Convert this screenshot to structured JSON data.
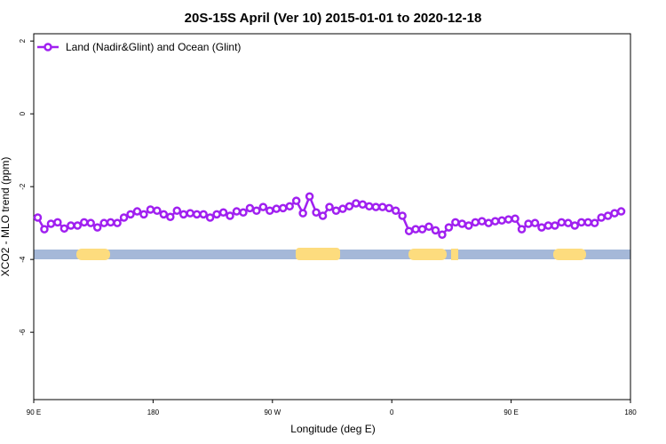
{
  "chart_data": {
    "type": "line",
    "title": "20S-15S April (Ver 10)   2015-01-01 to 2020-12-18",
    "x_label": "Longitude (deg E)",
    "y_label": "XCO2 - MLO trend (ppm)",
    "x": [
      93,
      98,
      103,
      108,
      113,
      118,
      123,
      128,
      133,
      138,
      143,
      148,
      153,
      158,
      163,
      168,
      173,
      178,
      183,
      188,
      193,
      198,
      203,
      208,
      213,
      218,
      223,
      228,
      233,
      238,
      243,
      248,
      253,
      258,
      263,
      268,
      273,
      278,
      283,
      288,
      293,
      298,
      303,
      308,
      313,
      318,
      323,
      328,
      333,
      338,
      343,
      348,
      353,
      358,
      363,
      368,
      373,
      378,
      383,
      388,
      393,
      398,
      403,
      408,
      413,
      418,
      423,
      428,
      433,
      438,
      443,
      448,
      453,
      458,
      463,
      468,
      473,
      478,
      483,
      488,
      493,
      498,
      503,
      508,
      513,
      518,
      523,
      528,
      533
    ],
    "series": [
      {
        "name": "Land (Nadir&Glint) and Ocean (Glint)",
        "color": "#a020f0",
        "values": [
          -2.85,
          -3.17,
          -3.02,
          -2.98,
          -3.15,
          -3.07,
          -3.07,
          -2.98,
          -3.0,
          -3.12,
          -3.0,
          -2.98,
          -3.0,
          -2.85,
          -2.76,
          -2.68,
          -2.76,
          -2.63,
          -2.66,
          -2.76,
          -2.83,
          -2.66,
          -2.76,
          -2.73,
          -2.76,
          -2.76,
          -2.85,
          -2.76,
          -2.71,
          -2.8,
          -2.68,
          -2.71,
          -2.59,
          -2.66,
          -2.56,
          -2.66,
          -2.61,
          -2.59,
          -2.54,
          -2.39,
          -2.73,
          -2.27,
          -2.71,
          -2.8,
          -2.56,
          -2.66,
          -2.61,
          -2.54,
          -2.46,
          -2.49,
          -2.54,
          -2.56,
          -2.56,
          -2.59,
          -2.66,
          -2.8,
          -3.22,
          -3.17,
          -3.17,
          -3.1,
          -3.2,
          -3.32,
          -3.12,
          -2.98,
          -3.02,
          -3.07,
          -2.98,
          -2.95,
          -3.0,
          -2.95,
          -2.93,
          -2.9,
          -2.88,
          -3.17,
          -3.02,
          -3.0,
          -3.12,
          -3.07,
          -3.07,
          -2.98,
          -3.0,
          -3.07,
          -2.98,
          -2.98,
          -3.0,
          -2.85,
          -2.8,
          -2.73,
          -2.68
        ]
      }
    ],
    "xlim": [
      90,
      540
    ],
    "xticks": [
      {
        "value": 90,
        "label": "90 E"
      },
      {
        "value": 180,
        "label": "180"
      },
      {
        "value": 270,
        "label": "90 W"
      },
      {
        "value": 360,
        "label": "0"
      },
      {
        "value": 450,
        "label": "90 E"
      },
      {
        "value": 540,
        "label": "180"
      }
    ],
    "ylim": [
      -7.85,
      2.2
    ],
    "yticks": [
      2,
      0,
      -2,
      -4,
      -6
    ],
    "legend": "top-left"
  }
}
